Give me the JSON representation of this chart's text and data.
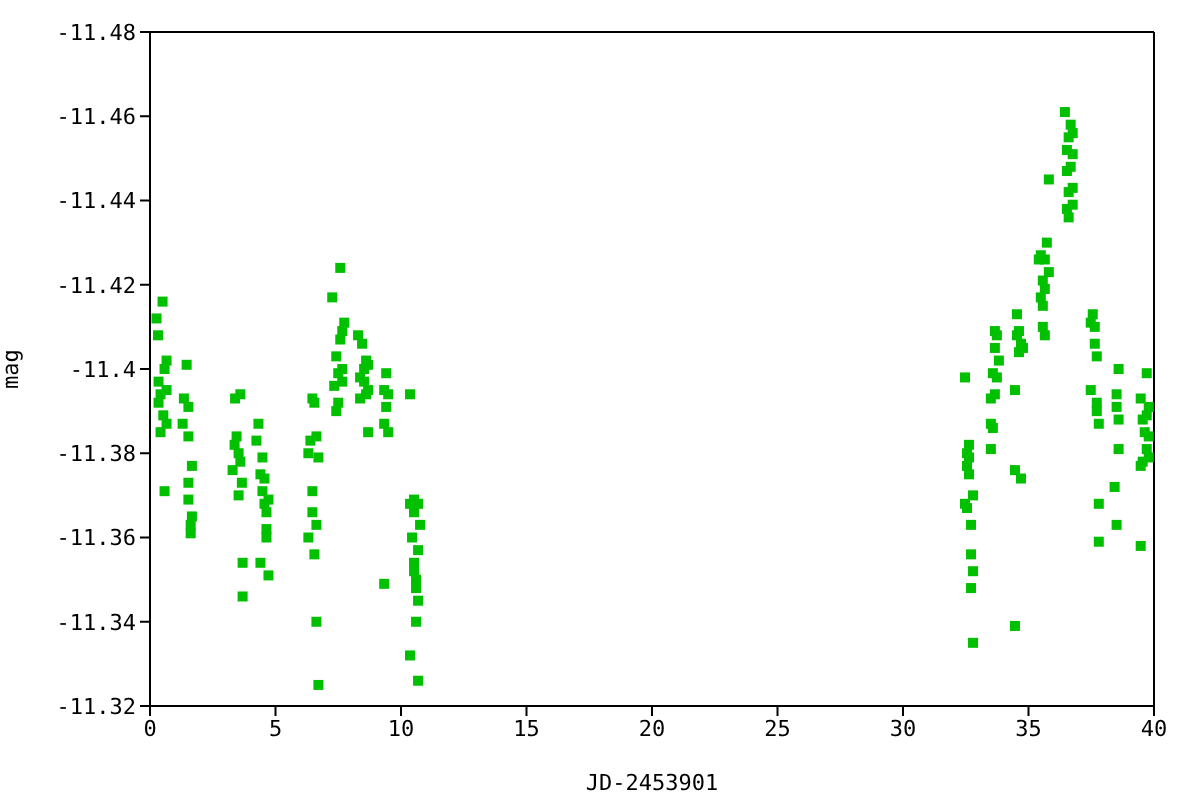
{
  "chart_data": {
    "type": "scatter",
    "xlabel": "JD-2453901",
    "ylabel": "mag",
    "xlim": [
      0,
      40
    ],
    "xticks": [
      0,
      5,
      10,
      15,
      20,
      25,
      30,
      35,
      40
    ],
    "ylim": [
      -11.32,
      -11.48
    ],
    "yticks": [
      -11.32,
      -11.34,
      -11.36,
      -11.38,
      -11.4,
      -11.42,
      -11.44,
      -11.46,
      -11.48
    ],
    "legend": false,
    "marker": "square",
    "series": [
      {
        "color": "#00c000",
        "x": [
          0.5,
          0.26,
          0.32,
          0.66,
          0.58,
          0.34,
          0.66,
          0.42,
          0.34,
          0.53,
          0.66,
          0.42,
          0.58,
          1.46,
          1.35,
          1.53,
          1.3,
          1.53,
          1.67,
          1.53,
          1.53,
          1.67,
          1.62,
          1.62,
          3.39,
          3.6,
          3.45,
          3.37,
          3.53,
          3.6,
          3.29,
          3.66,
          3.53,
          3.69,
          3.69,
          4.32,
          4.24,
          4.48,
          4.4,
          4.56,
          4.48,
          4.72,
          4.56,
          4.64,
          4.64,
          4.64,
          4.4,
          4.72,
          6.47,
          6.55,
          6.63,
          6.39,
          6.31,
          6.71,
          6.47,
          6.47,
          6.63,
          6.31,
          6.55,
          6.63,
          6.71,
          7.58,
          7.26,
          7.74,
          7.66,
          7.58,
          7.42,
          7.66,
          7.5,
          7.66,
          7.34,
          7.5,
          7.42,
          8.29,
          8.45,
          8.61,
          8.69,
          8.53,
          8.37,
          8.53,
          8.69,
          8.37,
          8.61,
          8.69,
          9.41,
          9.33,
          9.49,
          9.41,
          9.33,
          9.49,
          9.33,
          10.36,
          10.52,
          10.36,
          10.68,
          10.52,
          10.76,
          10.44,
          10.68,
          10.52,
          10.52,
          10.6,
          10.6,
          10.68,
          10.6,
          10.36,
          10.68,
          32.47,
          32.63,
          32.55,
          32.63,
          32.55,
          32.63,
          32.79,
          32.47,
          32.55,
          32.71,
          32.71,
          32.79,
          32.71,
          32.79,
          33.66,
          33.74,
          33.66,
          33.82,
          33.58,
          33.74,
          33.66,
          33.5,
          33.5,
          33.58,
          33.5,
          34.54,
          34.62,
          34.54,
          34.7,
          34.78,
          34.62,
          34.46,
          34.46,
          34.7,
          34.46,
          35.73,
          35.49,
          35.65,
          35.41,
          35.81,
          35.57,
          35.65,
          35.49,
          35.57,
          35.57,
          35.65,
          36.45,
          36.68,
          36.6,
          36.76,
          36.53,
          36.76,
          36.68,
          36.53,
          35.81,
          36.76,
          36.6,
          36.76,
          36.53,
          36.6,
          37.56,
          37.48,
          37.64,
          37.64,
          37.72,
          37.48,
          37.72,
          37.72,
          37.8,
          37.8,
          37.8,
          38.59,
          38.51,
          38.51,
          38.59,
          38.59,
          38.43,
          38.51,
          39.71,
          39.47,
          39.79,
          39.71,
          39.55,
          39.63,
          39.79,
          39.71,
          39.79,
          39.55,
          39.47,
          39.47
        ],
        "values": [
          -11.416,
          -11.412,
          -11.408,
          -11.402,
          -11.4,
          -11.397,
          -11.395,
          -11.394,
          -11.392,
          -11.389,
          -11.387,
          -11.385,
          -11.371,
          -11.401,
          -11.393,
          -11.391,
          -11.387,
          -11.384,
          -11.377,
          -11.373,
          -11.369,
          -11.365,
          -11.363,
          -11.361,
          -11.393,
          -11.394,
          -11.384,
          -11.382,
          -11.38,
          -11.378,
          -11.376,
          -11.373,
          -11.37,
          -11.354,
          -11.346,
          -11.387,
          -11.383,
          -11.379,
          -11.375,
          -11.374,
          -11.371,
          -11.369,
          -11.368,
          -11.366,
          -11.362,
          -11.36,
          -11.354,
          -11.351,
          -11.393,
          -11.392,
          -11.384,
          -11.383,
          -11.38,
          -11.379,
          -11.371,
          -11.366,
          -11.363,
          -11.36,
          -11.356,
          -11.34,
          -11.325,
          -11.424,
          -11.417,
          -11.411,
          -11.409,
          -11.407,
          -11.403,
          -11.4,
          -11.399,
          -11.397,
          -11.396,
          -11.392,
          -11.39,
          -11.408,
          -11.406,
          -11.402,
          -11.401,
          -11.4,
          -11.398,
          -11.397,
          -11.395,
          -11.393,
          -11.394,
          -11.385,
          -11.399,
          -11.395,
          -11.394,
          -11.391,
          -11.387,
          -11.385,
          -11.349,
          -11.394,
          -11.369,
          -11.368,
          -11.368,
          -11.366,
          -11.363,
          -11.36,
          -11.357,
          -11.354,
          -11.352,
          -11.35,
          -11.348,
          -11.345,
          -11.34,
          -11.332,
          -11.326,
          -11.398,
          -11.382,
          -11.38,
          -11.379,
          -11.377,
          -11.375,
          -11.37,
          -11.368,
          -11.367,
          -11.363,
          -11.356,
          -11.352,
          -11.348,
          -11.335,
          -11.409,
          -11.408,
          -11.405,
          -11.402,
          -11.399,
          -11.398,
          -11.394,
          -11.393,
          -11.387,
          -11.386,
          -11.381,
          -11.413,
          -11.409,
          -11.408,
          -11.406,
          -11.405,
          -11.404,
          -11.395,
          -11.376,
          -11.374,
          -11.339,
          -11.43,
          -11.427,
          -11.426,
          -11.426,
          -11.423,
          -11.421,
          -11.419,
          -11.417,
          -11.415,
          -11.41,
          -11.408,
          -11.461,
          -11.458,
          -11.455,
          -11.456,
          -11.452,
          -11.451,
          -11.448,
          -11.447,
          -11.445,
          -11.443,
          -11.442,
          -11.439,
          -11.438,
          -11.436,
          -11.413,
          -11.411,
          -11.41,
          -11.406,
          -11.403,
          -11.395,
          -11.392,
          -11.39,
          -11.387,
          -11.368,
          -11.359,
          -11.4,
          -11.394,
          -11.391,
          -11.388,
          -11.381,
          -11.372,
          -11.363,
          -11.399,
          -11.393,
          -11.391,
          -11.389,
          -11.388,
          -11.385,
          -11.384,
          -11.381,
          -11.379,
          -11.378,
          -11.377,
          -11.358
        ]
      }
    ]
  }
}
